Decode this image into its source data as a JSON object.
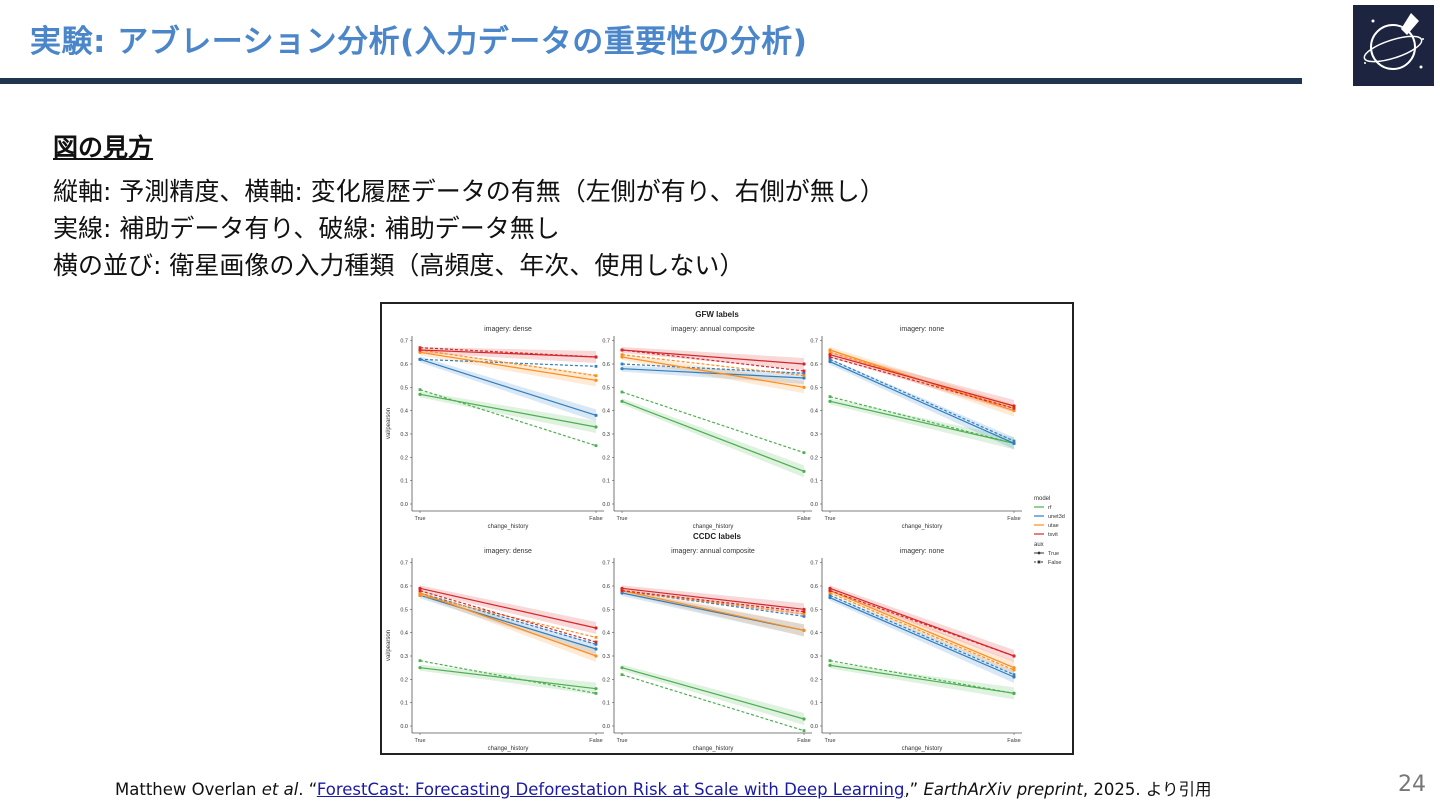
{
  "slide": {
    "title": "実験: アブレーション分析(入力データの重要性の分析)",
    "accent_color": "#4a86c9",
    "rule_color": "#1f3550",
    "logo_icon": "space-challenge-logo",
    "page_number": "24"
  },
  "legend_section": {
    "heading": "図の見方",
    "lines": [
      "縦軸: 予測精度、横軸: 変化履歴データの有無（左側が有り、右側が無し）",
      "実線: 補助データ有り、破線: 補助データ無し",
      "横の並び: 衛星画像の入力種類（高頻度、年次、使用しない）"
    ]
  },
  "citation": {
    "author": "Matthew Overlan ",
    "etal": "et al",
    "sep": ". “",
    "link_text": "ForestCast: Forecasting Deforestation Risk at Scale with Deep Learning",
    "after_link": ",” ",
    "journal": "EarthArXiv preprint",
    "tail": ", 2025. より引用"
  },
  "chart_data": [
    {
      "type": "line",
      "title": "GFW labels",
      "panels": [
        {
          "title": "imagery: dense",
          "x": [
            "True",
            "False"
          ],
          "series": [
            {
              "model": "rf",
              "aux": "True",
              "values": [
                0.47,
                0.33
              ]
            },
            {
              "model": "rf",
              "aux": "False",
              "values": [
                0.49,
                0.25
              ]
            },
            {
              "model": "unet3d",
              "aux": "True",
              "values": [
                0.62,
                0.38
              ]
            },
            {
              "model": "unet3d",
              "aux": "False",
              "values": [
                0.62,
                0.59
              ]
            },
            {
              "model": "utae",
              "aux": "True",
              "values": [
                0.65,
                0.53
              ]
            },
            {
              "model": "utae",
              "aux": "False",
              "values": [
                0.66,
                0.55
              ]
            },
            {
              "model": "tsvit",
              "aux": "True",
              "values": [
                0.66,
                0.63
              ]
            },
            {
              "model": "tsvit",
              "aux": "False",
              "values": [
                0.67,
                0.63
              ]
            }
          ]
        },
        {
          "title": "imagery: annual composite",
          "x": [
            "True",
            "False"
          ],
          "series": [
            {
              "model": "rf",
              "aux": "True",
              "values": [
                0.44,
                0.14
              ]
            },
            {
              "model": "rf",
              "aux": "False",
              "values": [
                0.48,
                0.22
              ]
            },
            {
              "model": "unet3d",
              "aux": "True",
              "values": [
                0.58,
                0.54
              ]
            },
            {
              "model": "unet3d",
              "aux": "False",
              "values": [
                0.6,
                0.56
              ]
            },
            {
              "model": "utae",
              "aux": "True",
              "values": [
                0.63,
                0.5
              ]
            },
            {
              "model": "utae",
              "aux": "False",
              "values": [
                0.64,
                0.55
              ]
            },
            {
              "model": "tsvit",
              "aux": "True",
              "values": [
                0.66,
                0.6
              ]
            },
            {
              "model": "tsvit",
              "aux": "False",
              "values": [
                0.66,
                0.57
              ]
            }
          ]
        },
        {
          "title": "imagery: none",
          "x": [
            "True",
            "False"
          ],
          "series": [
            {
              "model": "rf",
              "aux": "True",
              "values": [
                0.44,
                0.26
              ]
            },
            {
              "model": "rf",
              "aux": "False",
              "values": [
                0.46,
                0.26
              ]
            },
            {
              "model": "unet3d",
              "aux": "True",
              "values": [
                0.61,
                0.26
              ]
            },
            {
              "model": "unet3d",
              "aux": "False",
              "values": [
                0.62,
                0.27
              ]
            },
            {
              "model": "utae",
              "aux": "True",
              "values": [
                0.66,
                0.4
              ]
            },
            {
              "model": "utae",
              "aux": "False",
              "values": [
                0.65,
                0.41
              ]
            },
            {
              "model": "tsvit",
              "aux": "True",
              "values": [
                0.64,
                0.42
              ]
            },
            {
              "model": "tsvit",
              "aux": "False",
              "values": [
                0.63,
                0.41
              ]
            }
          ]
        }
      ]
    },
    {
      "type": "line",
      "title": "CCDC labels",
      "panels": [
        {
          "title": "imagery: dense",
          "x": [
            "True",
            "False"
          ],
          "series": [
            {
              "model": "rf",
              "aux": "True",
              "values": [
                0.25,
                0.16
              ]
            },
            {
              "model": "rf",
              "aux": "False",
              "values": [
                0.28,
                0.14
              ]
            },
            {
              "model": "unet3d",
              "aux": "True",
              "values": [
                0.56,
                0.33
              ]
            },
            {
              "model": "unet3d",
              "aux": "False",
              "values": [
                0.57,
                0.35
              ]
            },
            {
              "model": "utae",
              "aux": "True",
              "values": [
                0.57,
                0.3
              ]
            },
            {
              "model": "utae",
              "aux": "False",
              "values": [
                0.56,
                0.38
              ]
            },
            {
              "model": "tsvit",
              "aux": "True",
              "values": [
                0.59,
                0.42
              ]
            },
            {
              "model": "tsvit",
              "aux": "False",
              "values": [
                0.58,
                0.36
              ]
            }
          ]
        },
        {
          "title": "imagery: annual composite",
          "x": [
            "True",
            "False"
          ],
          "series": [
            {
              "model": "rf",
              "aux": "True",
              "values": [
                0.25,
                0.03
              ]
            },
            {
              "model": "rf",
              "aux": "False",
              "values": [
                0.22,
                -0.02
              ]
            },
            {
              "model": "unet3d",
              "aux": "True",
              "values": [
                0.57,
                0.41
              ]
            },
            {
              "model": "unet3d",
              "aux": "False",
              "values": [
                0.58,
                0.47
              ]
            },
            {
              "model": "utae",
              "aux": "True",
              "values": [
                0.58,
                0.41
              ]
            },
            {
              "model": "utae",
              "aux": "False",
              "values": [
                0.58,
                0.48
              ]
            },
            {
              "model": "tsvit",
              "aux": "True",
              "values": [
                0.59,
                0.5
              ]
            },
            {
              "model": "tsvit",
              "aux": "False",
              "values": [
                0.58,
                0.49
              ]
            }
          ]
        },
        {
          "title": "imagery: none",
          "x": [
            "True",
            "False"
          ],
          "series": [
            {
              "model": "rf",
              "aux": "True",
              "values": [
                0.26,
                0.14
              ]
            },
            {
              "model": "rf",
              "aux": "False",
              "values": [
                0.28,
                0.14
              ]
            },
            {
              "model": "unet3d",
              "aux": "True",
              "values": [
                0.55,
                0.21
              ]
            },
            {
              "model": "unet3d",
              "aux": "False",
              "values": [
                0.56,
                0.22
              ]
            },
            {
              "model": "utae",
              "aux": "True",
              "values": [
                0.58,
                0.25
              ]
            },
            {
              "model": "utae",
              "aux": "False",
              "values": [
                0.57,
                0.24
              ]
            },
            {
              "model": "tsvit",
              "aux": "True",
              "values": [
                0.59,
                0.3
              ]
            },
            {
              "model": "tsvit",
              "aux": "False",
              "values": [
                0.58,
                0.3
              ]
            }
          ]
        }
      ]
    }
  ],
  "figure_axes": {
    "ylabel": "val/pearson",
    "xlabel": "change_history",
    "yticks": [
      "0.0",
      "0.1",
      "0.2",
      "0.3",
      "0.4",
      "0.5",
      "0.6",
      "0.7"
    ],
    "ylim": [
      -0.03,
      0.72
    ]
  },
  "figure_legend": {
    "model_title": "model",
    "models": [
      "rf",
      "unet3d",
      "utae",
      "tsvit"
    ],
    "aux_title": "aux",
    "aux_values": [
      "True",
      "False"
    ],
    "placement": "right"
  },
  "colors": {
    "rf": "#4caf50",
    "unet3d": "#2f7fc1",
    "utae": "#ff8c1a",
    "tsvit": "#d62728"
  }
}
